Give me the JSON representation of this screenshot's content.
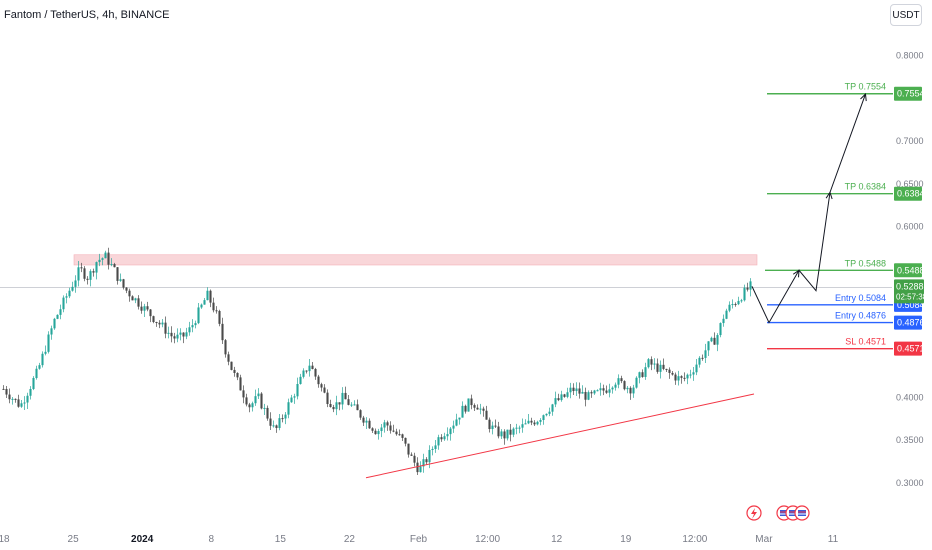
{
  "header": {
    "title": "Fantom / TetherUS, 4h, BINANCE",
    "currency_button": "USDT"
  },
  "colors": {
    "up": "#26a69a",
    "down": "#4a4a4a",
    "tp": "#4caf50",
    "entry": "#2962ff",
    "sl": "#f23645",
    "trendline": "#f23645",
    "resistance_zone": "#f8cfd3",
    "price_badge": "#43a047",
    "axis_text": "#787b86"
  },
  "chart_data": {
    "type": "candlestick",
    "symbol": "Fantom / TetherUS",
    "timeframe": "4h",
    "exchange": "BINANCE",
    "y_axis": {
      "ticks": [
        "0.8000",
        "0.7000",
        "0.6500",
        "0.6000",
        "0.4000",
        "0.3500",
        "0.3000"
      ],
      "ylim": [
        0.28,
        0.83
      ]
    },
    "x_axis": {
      "ticks": [
        "18",
        "25",
        "2024",
        "8",
        "15",
        "22",
        "Feb",
        "12:00",
        "12",
        "19",
        "12:00",
        "Mar",
        "11"
      ]
    },
    "last_price": {
      "value": "0.5288",
      "countdown": "02:57:38"
    },
    "levels": [
      {
        "kind": "tp",
        "label": "TP 0.7554",
        "value": 0.7554,
        "badge": "0.7554"
      },
      {
        "kind": "tp",
        "label": "TP 0.6384",
        "value": 0.6384,
        "badge": "0.6384"
      },
      {
        "kind": "tp",
        "label": "TP 0.5488",
        "value": 0.5488,
        "badge": "0.5488"
      },
      {
        "kind": "entry",
        "label": "Entry 0.5084",
        "value": 0.5084,
        "badge": "0.5084"
      },
      {
        "kind": "entry",
        "label": "Entry 0.4876",
        "value": 0.4876,
        "badge": "0.4876"
      },
      {
        "kind": "sl",
        "label": "SL 0.4571",
        "value": 0.4571,
        "badge": "0.4571"
      }
    ],
    "resistance_zone": {
      "low": 0.555,
      "high": 0.567
    },
    "trendline": {
      "from_price": 0.306,
      "to_price": 0.404
    },
    "close_path": [
      0.41,
      0.4,
      0.39,
      0.41,
      0.43,
      0.46,
      0.49,
      0.51,
      0.53,
      0.55,
      0.54,
      0.56,
      0.565,
      0.55,
      0.53,
      0.52,
      0.51,
      0.5,
      0.49,
      0.48,
      0.47,
      0.47,
      0.48,
      0.5,
      0.52,
      0.5,
      0.46,
      0.43,
      0.41,
      0.39,
      0.4,
      0.38,
      0.36,
      0.38,
      0.4,
      0.42,
      0.44,
      0.42,
      0.4,
      0.39,
      0.4,
      0.39,
      0.38,
      0.37,
      0.36,
      0.37,
      0.36,
      0.35,
      0.33,
      0.315,
      0.33,
      0.35,
      0.36,
      0.37,
      0.385,
      0.395,
      0.39,
      0.37,
      0.36,
      0.355,
      0.36,
      0.365,
      0.37,
      0.375,
      0.385,
      0.395,
      0.4,
      0.41,
      0.405,
      0.4,
      0.405,
      0.41,
      0.42,
      0.415,
      0.41,
      0.425,
      0.44,
      0.435,
      0.43,
      0.425,
      0.42,
      0.43,
      0.445,
      0.46,
      0.47,
      0.5,
      0.51,
      0.52,
      0.53
    ],
    "projection": [
      {
        "x_frac": 0.0,
        "price": 0.53
      },
      {
        "x_frac": 0.34,
        "price": 0.4876
      },
      {
        "x_frac": 0.94,
        "price": 0.5488
      },
      {
        "x_frac": 1.28,
        "price": 0.525
      },
      {
        "x_frac": 1.56,
        "price": 0.64
      },
      {
        "x_frac": 2.27,
        "price": 0.755
      }
    ],
    "grid": false,
    "legend": "none"
  }
}
